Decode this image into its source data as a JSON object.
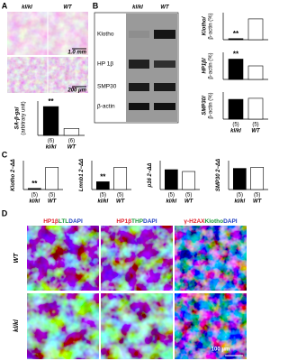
{
  "panels": {
    "a": {
      "label": "A",
      "columns": [
        "kl/kl",
        "WT"
      ],
      "scales": [
        "1.0 mm",
        "200 μm"
      ],
      "chart": {
        "type": "bar",
        "ylabel": [
          "SA-β-gal",
          "(arbitrary unit)"
        ],
        "categories": [
          "kl/kl",
          "WT"
        ],
        "n": [
          "(6)",
          "(6)"
        ],
        "values": [
          4.2,
          1
        ],
        "ylim": [
          0,
          5
        ],
        "colors": [
          "#000000",
          "#ffffff"
        ],
        "significance": "**"
      }
    },
    "b": {
      "label": "B",
      "columns": [
        "kl/kl",
        "WT"
      ],
      "bands": [
        "Klotho",
        "HP 1β",
        "SMP30",
        "β-actin"
      ],
      "categories": [
        "kl/kl",
        "WT"
      ],
      "n": [
        "(5)",
        "(5)"
      ],
      "charts": [
        {
          "type": "bar",
          "ylabel": [
            "Klotho/",
            "β-actin (%)"
          ],
          "values": [
            5,
            100
          ],
          "ylim": [
            0,
            130
          ],
          "colors": [
            "#000000",
            "#ffffff"
          ],
          "significance": "**"
        },
        {
          "type": "bar",
          "ylabel": [
            "HP1β/",
            "β-actin (%)"
          ],
          "values": [
            150,
            100
          ],
          "ylim": [
            0,
            200
          ],
          "colors": [
            "#000000",
            "#ffffff"
          ],
          "significance": "**"
        },
        {
          "type": "bar",
          "ylabel": [
            "SMP30/",
            "β-actin (%)"
          ],
          "values": [
            95,
            100
          ],
          "ylim": [
            0,
            130
          ],
          "colors": [
            "#000000",
            "#ffffff"
          ]
        }
      ]
    },
    "c": {
      "label": "C",
      "charts": [
        {
          "type": "bar",
          "ylabel": [
            "Klotho 2−ΔΔ"
          ],
          "categories": [
            "kl/kl",
            "WT"
          ],
          "n": [
            "(5)",
            "(5)"
          ],
          "values": [
            5,
            100
          ],
          "ylim": [
            0,
            130
          ],
          "colors": [
            "#000000",
            "#ffffff"
          ],
          "significance": "**"
        },
        {
          "type": "bar",
          "ylabel": [
            "Lmnb1 2−ΔΔ"
          ],
          "categories": [
            "kl/kl",
            "WT"
          ],
          "n": [
            "(5)",
            "(5)"
          ],
          "values": [
            35,
            100
          ],
          "ylim": [
            0,
            130
          ],
          "colors": [
            "#000000",
            "#ffffff"
          ],
          "significance": "**"
        },
        {
          "type": "bar",
          "ylabel": [
            "p16 2−ΔΔ"
          ],
          "categories": [
            "kl/kl",
            "WT"
          ],
          "n": [
            "(5)",
            "(5)"
          ],
          "values": [
            110,
            100
          ],
          "ylim": [
            0,
            160
          ],
          "colors": [
            "#000000",
            "#ffffff"
          ]
        },
        {
          "type": "bar",
          "ylabel": [
            "SMP30 2−ΔΔ"
          ],
          "categories": [
            "kl/kl",
            "WT"
          ],
          "n": [
            "(5)",
            "(5)"
          ],
          "values": [
            95,
            100
          ],
          "ylim": [
            0,
            130
          ],
          "colors": [
            "#000000",
            "#ffffff"
          ]
        }
      ]
    },
    "d": {
      "label": "D",
      "rows": [
        "WT",
        "kl/kl"
      ],
      "scale": "100 μm",
      "columns": [
        [
          {
            "text": "HP1β",
            "color": "#e0202a"
          },
          {
            "text": "LTL",
            "color": "#1a9a3a"
          },
          {
            "text": "DAPI",
            "color": "#2040c0"
          }
        ],
        [
          {
            "text": "HP1β",
            "color": "#e0202a"
          },
          {
            "text": "THP",
            "color": "#1a9a3a"
          },
          {
            "text": "DAPI",
            "color": "#2040c0"
          }
        ],
        [
          {
            "text": "γ-H2AX",
            "color": "#e0202a"
          },
          {
            "text": "Klotho",
            "color": "#1a9a3a"
          },
          {
            "text": "DAPI",
            "color": "#2040c0"
          }
        ]
      ]
    }
  }
}
